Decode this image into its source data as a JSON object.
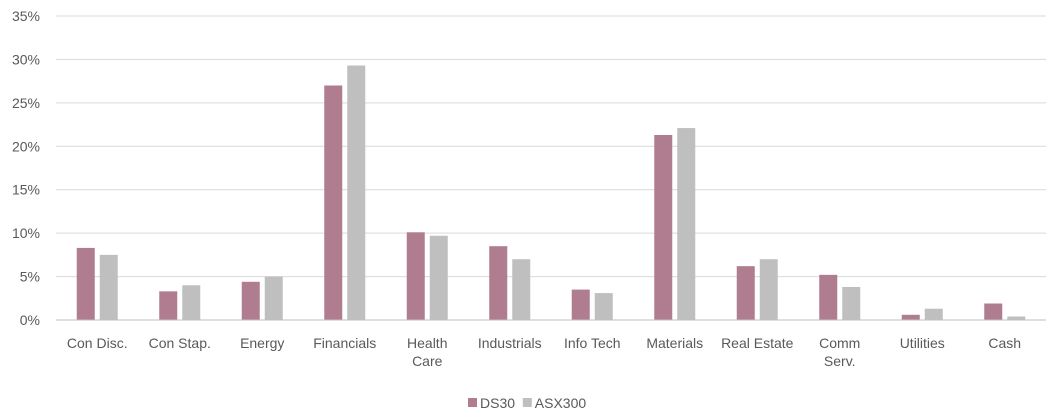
{
  "chart_data": {
    "type": "bar",
    "categories": [
      "Con Disc.",
      "Con Stap.",
      "Energy",
      "Financials",
      "Health Care",
      "Industrials",
      "Info Tech",
      "Materials",
      "Real Estate",
      "Comm Serv.",
      "Utilities",
      "Cash"
    ],
    "series": [
      {
        "name": "DS30",
        "color": "#b07d90",
        "values": [
          8.3,
          3.3,
          4.4,
          27.0,
          10.1,
          8.5,
          3.5,
          21.3,
          6.2,
          5.2,
          0.6,
          1.9
        ]
      },
      {
        "name": "ASX300",
        "color": "#bfbfbf",
        "values": [
          7.5,
          4.0,
          5.0,
          29.3,
          9.7,
          7.0,
          3.1,
          22.1,
          7.0,
          3.8,
          1.3,
          0.4
        ]
      }
    ],
    "ylim": [
      0,
      35
    ],
    "yticks": [
      "0%",
      "5%",
      "10%",
      "15%",
      "20%",
      "25%",
      "30%",
      "35%"
    ],
    "grid": true,
    "legend": "bottom-center"
  }
}
